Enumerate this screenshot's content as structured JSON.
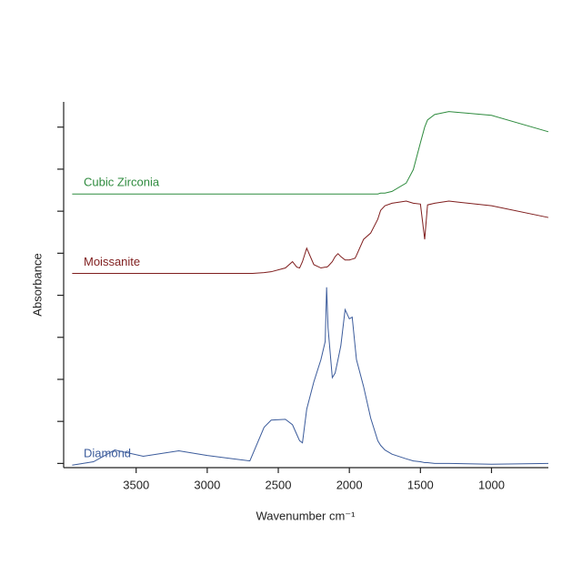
{
  "chart_data": {
    "type": "line",
    "x_label": "Wavenumber cm⁻¹",
    "y_label": "Absorbance",
    "x": [
      3950,
      3800,
      3650,
      3450,
      3200,
      3000,
      2700,
      2680,
      2600,
      2550,
      2450,
      2400,
      2370,
      2350,
      2330,
      2300,
      2250,
      2200,
      2170,
      2160,
      2150,
      2120,
      2100,
      2080,
      2060,
      2030,
      2000,
      1980,
      1960,
      1950,
      1900,
      1850,
      1800,
      1780,
      1750,
      1700,
      1600,
      1550,
      1500,
      1470,
      1450,
      1400,
      1300,
      1000,
      600
    ],
    "series": [
      {
        "name": "Cubic Zirconia",
        "color": "#2e8b3e",
        "values": [
          6.41,
          6.41,
          6.41,
          6.41,
          6.41,
          6.41,
          6.41,
          6.41,
          6.41,
          6.41,
          6.41,
          6.41,
          6.41,
          6.41,
          6.41,
          6.41,
          6.41,
          6.41,
          6.41,
          6.41,
          6.41,
          6.41,
          6.41,
          6.41,
          6.41,
          6.41,
          6.41,
          6.41,
          6.41,
          6.41,
          6.41,
          6.41,
          6.41,
          6.43,
          6.43,
          6.47,
          6.67,
          6.99,
          7.63,
          8.0,
          8.17,
          8.3,
          8.37,
          8.28,
          7.89
        ]
      },
      {
        "name": "Moissanite",
        "color": "#7f1d1d",
        "values": [
          4.52,
          4.52,
          4.52,
          4.52,
          4.52,
          4.52,
          4.52,
          4.52,
          4.54,
          4.56,
          4.65,
          4.8,
          4.67,
          4.65,
          4.8,
          5.12,
          4.73,
          4.65,
          4.67,
          4.67,
          4.69,
          4.8,
          4.92,
          4.99,
          4.92,
          4.84,
          4.84,
          4.86,
          4.88,
          4.95,
          5.33,
          5.48,
          5.81,
          6.02,
          6.13,
          6.19,
          6.24,
          6.19,
          6.17,
          5.33,
          6.15,
          6.19,
          6.24,
          6.13,
          5.85
        ]
      },
      {
        "name": "Diamond",
        "color": "#3b5b9b",
        "values": [
          -0.04,
          0.04,
          0.32,
          0.17,
          0.3,
          0.19,
          0.06,
          0.22,
          0.86,
          1.03,
          1.05,
          0.92,
          0.69,
          0.54,
          0.49,
          1.29,
          1.94,
          2.47,
          2.9,
          4.19,
          3.23,
          2.04,
          2.15,
          2.47,
          2.8,
          3.66,
          3.44,
          3.48,
          2.8,
          2.47,
          1.83,
          1.08,
          0.54,
          0.43,
          0.32,
          0.22,
          0.11,
          0.06,
          0.04,
          0.02,
          0.02,
          0,
          0,
          -0.02,
          0
        ]
      }
    ],
    "xlim": [
      4010,
      600
    ],
    "xticks": [
      3500,
      3000,
      2500,
      2000,
      1500,
      1000
    ],
    "ylim": [
      -0.1,
      8.6
    ],
    "yticks": [
      0,
      1,
      2,
      3,
      4,
      5,
      6,
      7,
      8
    ],
    "grid": false
  }
}
